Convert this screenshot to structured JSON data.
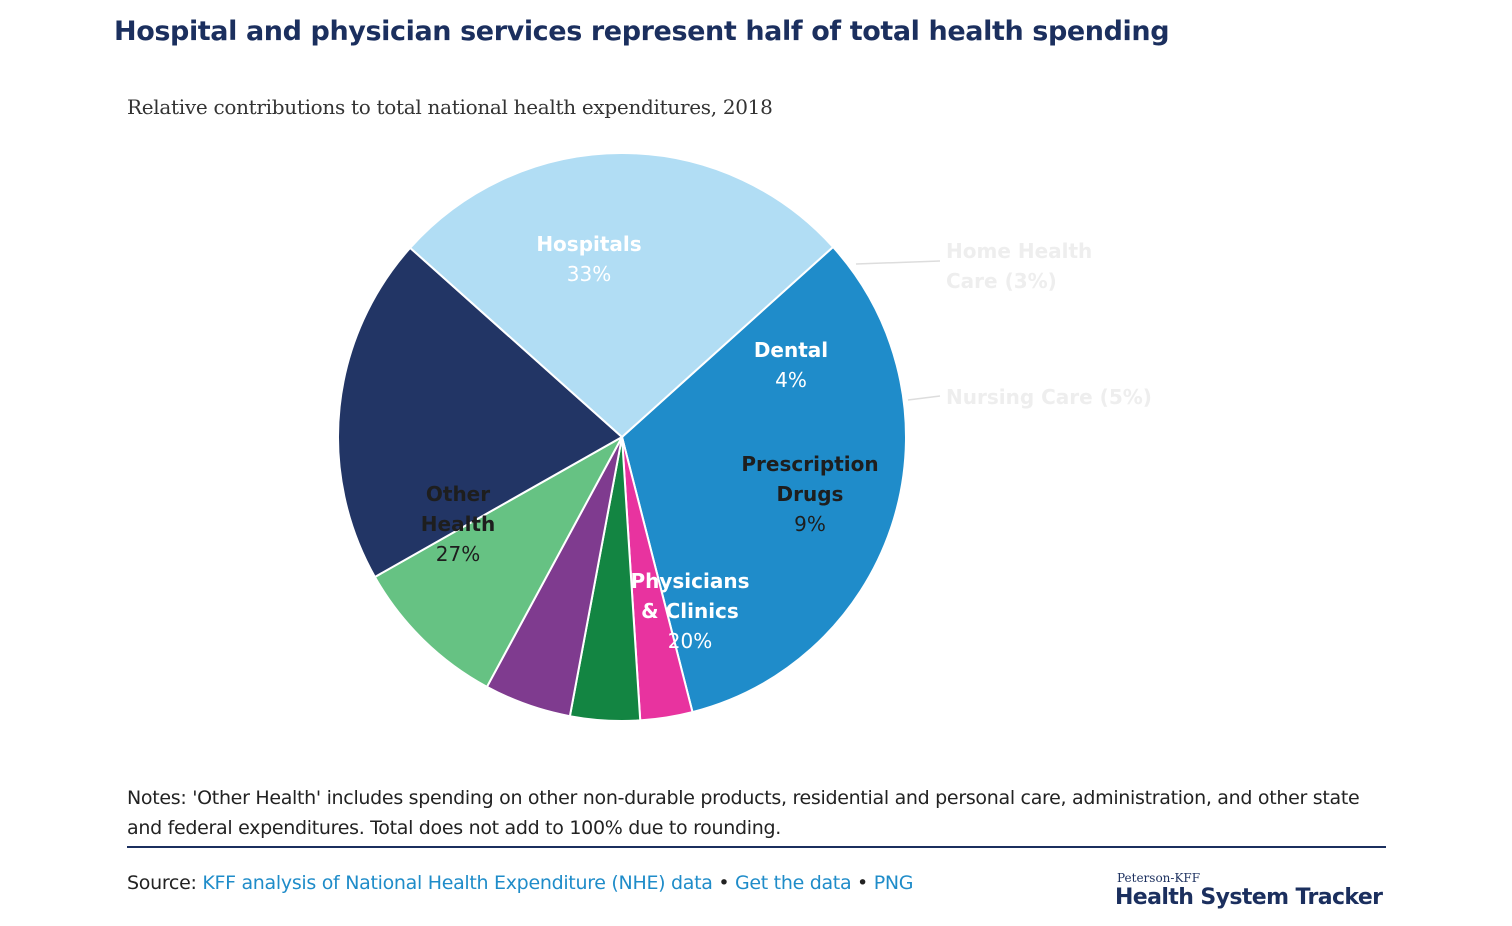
{
  "header": {
    "title": "Hospital and physician services represent half of total health spending",
    "subtitle": "Relative contributions to total national health expenditures, 2018"
  },
  "chart_data": {
    "type": "pie",
    "title": "Hospital and physician services represent half of total health spending",
    "subtitle": "Relative contributions to total national health expenditures, 2018",
    "slices": [
      {
        "name": "Hospitals",
        "value": 33,
        "label_lines": [
          "Hospitals"
        ],
        "value_text": "33%",
        "color": "#1f8cca",
        "label_color": "#ffffff",
        "inside": true
      },
      {
        "name": "Home Health Care",
        "value": 3,
        "label_lines": [
          "Home Health",
          "Care (3%)"
        ],
        "value_text": "",
        "color": "#e8339f",
        "label_color": "#eeeeee",
        "inside": false
      },
      {
        "name": "Dental",
        "value": 4,
        "label_lines": [
          "Dental"
        ],
        "value_text": "4%",
        "color": "#138542",
        "label_color": "#ffffff",
        "inside": true
      },
      {
        "name": "Nursing Care",
        "value": 5,
        "label_lines": [
          "Nursing Care (5%)"
        ],
        "value_text": "",
        "color": "#7f3b8f",
        "label_color": "#eeeeee",
        "inside": false
      },
      {
        "name": "Prescription Drugs",
        "value": 9,
        "label_lines": [
          "Prescription",
          "Drugs"
        ],
        "value_text": "9%",
        "color": "#66c283",
        "label_color": "#1e1e1e",
        "inside": true
      },
      {
        "name": "Physicians & Clinics",
        "value": 20,
        "label_lines": [
          "Physicians",
          "& Clinics"
        ],
        "value_text": "20%",
        "color": "#223565",
        "label_color": "#ffffff",
        "inside": true
      },
      {
        "name": "Other Health",
        "value": 27,
        "label_lines": [
          "Other",
          "Health"
        ],
        "value_text": "27%",
        "color": "#b1ddf4",
        "label_color": "#1e1e1e",
        "inside": true
      }
    ]
  },
  "footer": {
    "notes": "Notes: 'Other Health' includes spending on other non-durable products, residential and personal care, administration, and other state and federal expenditures. Total does not add to 100% due to rounding.",
    "source_prefix": "Source: ",
    "source_link": "KFF analysis of National Health Expenditure (NHE) data",
    "bullet": " • ",
    "get_data_link": "Get the data",
    "png_link": "PNG",
    "brand_small": "Peterson-KFF",
    "brand_big": "Health System Tracker"
  }
}
